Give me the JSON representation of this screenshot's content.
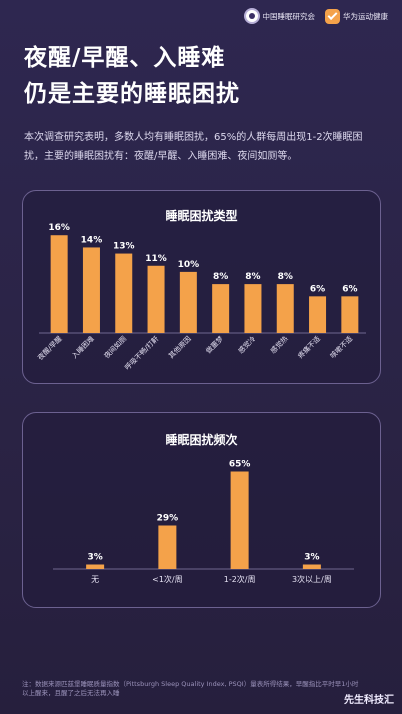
{
  "logos": {
    "left": "中国睡眠研究会",
    "right": "华为运动健康"
  },
  "title": {
    "line1": "夜醒/早醒、入睡难",
    "line2": "仍是主要的睡眠困扰"
  },
  "intro": "本次调查研究表明，多数人均有睡眠困扰，65%的人群每周出现1-2次睡眠困扰，主要的睡眠困扰有：夜醒/早醒、入睡困难、夜间如厕等。",
  "chart_data": [
    {
      "type": "bar",
      "title": "睡眠困扰类型",
      "categories": [
        "夜醒/早醒",
        "入睡困难",
        "夜间如厕",
        "呼吸不畅/打鼾",
        "其他原因",
        "做噩梦",
        "感觉冷",
        "感觉热",
        "疼痛不适",
        "咳嗽不适"
      ],
      "values": [
        16,
        14,
        13,
        11,
        10,
        8,
        8,
        8,
        6,
        6
      ],
      "value_labels": [
        "16%",
        "14%",
        "13%",
        "11%",
        "10%",
        "8%",
        "8%",
        "8%",
        "6%",
        "6%"
      ],
      "ylim": [
        0,
        18
      ],
      "color": "#f4a24a"
    },
    {
      "type": "bar",
      "title": "睡眠困扰频次",
      "categories": [
        "无",
        "<1次/周",
        "1-2次/周",
        "3次以上/周"
      ],
      "values": [
        3,
        29,
        65,
        3
      ],
      "value_labels": [
        "3%",
        "29%",
        "65%",
        "3%"
      ],
      "ylim": [
        0,
        72
      ],
      "color": "#f4a24a"
    }
  ],
  "footnote": "注：数据来源匹兹堡睡眠质量指数（Pittsburgh Sleep Quality Index, PSQI）量表所得结果，早醒指比平时早1小时以上醒来，且醒了之后无法再入睡",
  "watermark": "先生科技汇"
}
